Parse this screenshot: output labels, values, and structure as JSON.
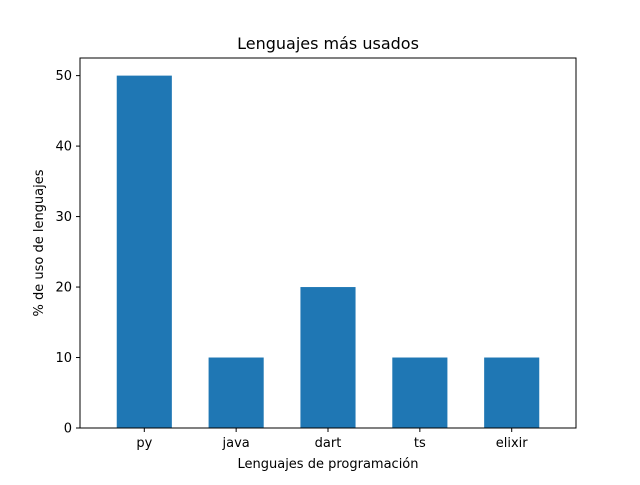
{
  "chart_data": {
    "type": "bar",
    "title": "Lenguajes más usados",
    "xlabel": "Lenguajes de programación",
    "ylabel": "% de uso de lenguajes",
    "categories": [
      "py",
      "java",
      "dart",
      "ts",
      "elixir"
    ],
    "values": [
      50,
      10,
      20,
      10,
      10
    ],
    "ylim": [
      0,
      52.5
    ],
    "yticks": [
      0,
      10,
      20,
      30,
      40,
      50
    ],
    "bar_color": "#1f77b4",
    "grid": false,
    "legend": "none"
  }
}
